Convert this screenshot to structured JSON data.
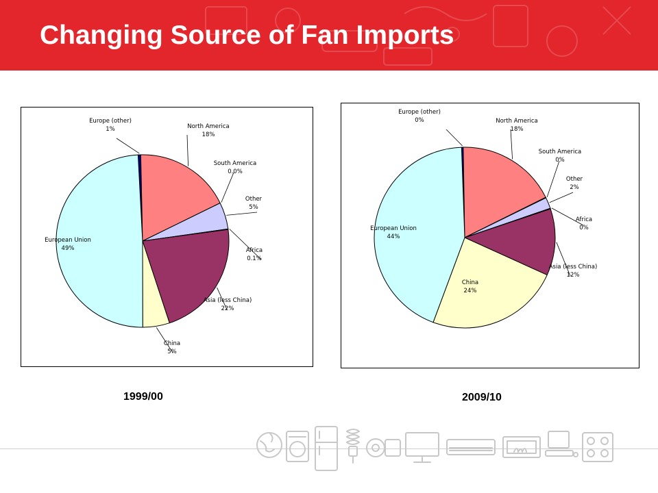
{
  "slide": {
    "title": "Changing Source of Fan Imports",
    "colors": {
      "banner": "#e2262c",
      "title_text": "#ffffff"
    },
    "footer_icons": [
      "globe-icon",
      "washing-machine-icon",
      "refrigerator-icon",
      "cfl-bulb-icon",
      "fan-icon",
      "television-icon",
      "air-conditioner-icon",
      "fireplace-icon",
      "computer-icon",
      "stove-icon"
    ]
  },
  "chart_data": [
    {
      "type": "pie",
      "title": "1999/00",
      "start_label": "Europe (other)",
      "slices": [
        {
          "label": "Europe (other)",
          "value_label": "1%",
          "value": 0.5,
          "color": "#000080"
        },
        {
          "label": "North America",
          "value_label": "18%",
          "value": 18,
          "color": "#ff8080"
        },
        {
          "label": "South America",
          "value_label": "0.0%",
          "value": 0,
          "color": "#c0c0ff"
        },
        {
          "label": "Other",
          "value_label": "5%",
          "value": 5,
          "color": "#ccccff"
        },
        {
          "label": "Africa",
          "value_label": "0.1%",
          "value": 0.1,
          "color": "#ffffcc"
        },
        {
          "label": "Asia (less China)",
          "value_label": "22%",
          "value": 22,
          "color": "#993366"
        },
        {
          "label": "China",
          "value_label": "5%",
          "value": 5,
          "color": "#ffffcc"
        },
        {
          "label": "European Union",
          "value_label": "49%",
          "value": 49,
          "color": "#ccffff"
        }
      ]
    },
    {
      "type": "pie",
      "title": "2009/10",
      "slices": [
        {
          "label": "Europe (other)",
          "value_label": "0%",
          "value": 0.3,
          "color": "#000080"
        },
        {
          "label": "North America",
          "value_label": "18%",
          "value": 18,
          "color": "#ff8080"
        },
        {
          "label": "South America",
          "value_label": "0%",
          "value": 0.1,
          "color": "#c0c0ff"
        },
        {
          "label": "Other",
          "value_label": "2%",
          "value": 2,
          "color": "#ccccff"
        },
        {
          "label": "Africa",
          "value_label": "0%",
          "value": 0.1,
          "color": "#ffffcc"
        },
        {
          "label": "Asia (less China)",
          "value_label": "12%",
          "value": 12,
          "color": "#993366"
        },
        {
          "label": "China",
          "value_label": "24%",
          "value": 24,
          "color": "#ffffcc"
        },
        {
          "label": "European Union",
          "value_label": "44%",
          "value": 44,
          "color": "#ccffff"
        }
      ]
    }
  ]
}
